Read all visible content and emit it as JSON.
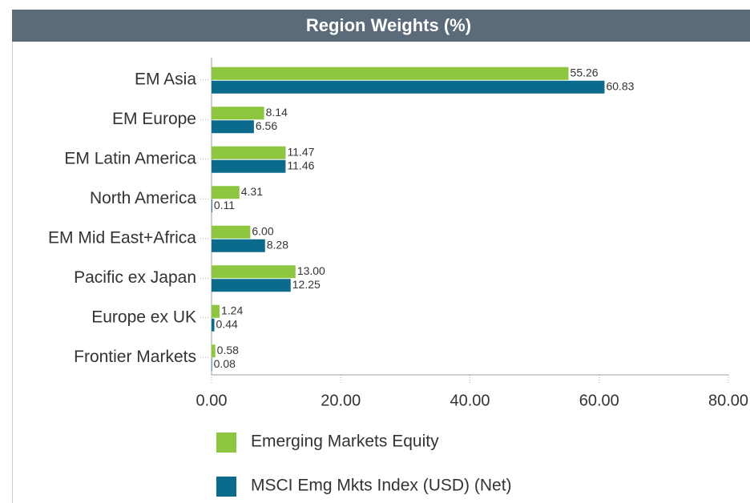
{
  "chart_data": {
    "type": "bar",
    "orientation": "horizontal",
    "title": "Region Weights (%)",
    "categories": [
      "EM Asia",
      "EM Europe",
      "EM Latin America",
      "North America",
      "EM Mid East+Africa",
      "Pacific ex Japan",
      "Europe ex UK",
      "Frontier Markets"
    ],
    "series": [
      {
        "name": "Emerging Markets Equity",
        "color": "#8dc63f",
        "values": [
          55.26,
          8.14,
          11.47,
          4.31,
          6.0,
          13.0,
          1.24,
          0.58
        ],
        "value_labels": [
          "55.26",
          "8.14",
          "11.47",
          "4.31",
          "6.00",
          "13.00",
          "1.24",
          "0.58"
        ]
      },
      {
        "name": "MSCI Emg Mkts Index (USD) (Net)",
        "color": "#0b6b8c",
        "values": [
          60.83,
          6.56,
          11.46,
          0.11,
          8.28,
          12.25,
          0.44,
          0.08
        ],
        "value_labels": [
          "60.83",
          "6.56",
          "11.46",
          "0.11",
          "8.28",
          "12.25",
          "0.44",
          "0.08"
        ]
      }
    ],
    "xlim": [
      0,
      80
    ],
    "xticks": [
      {
        "value": 0,
        "label": "0.00"
      },
      {
        "value": 20,
        "label": "20.00"
      },
      {
        "value": 40,
        "label": "40.00"
      },
      {
        "value": 60,
        "label": "60.00"
      },
      {
        "value": 80,
        "label": "80.00"
      }
    ],
    "legend": "bottom"
  }
}
